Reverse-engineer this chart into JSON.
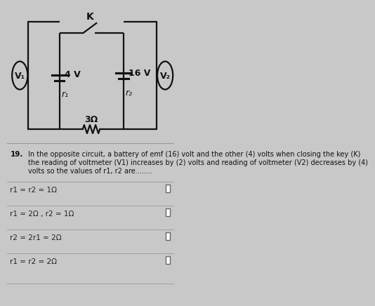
{
  "bg_color": "#c8c8c8",
  "circuit_area_bg": "#d0d0d0",
  "question_area_bg": "#c8c8c8",
  "title_number": "19.",
  "question_line1": "In the opposite circuit, a battery of emf (16) volt and the other (4) volts when closing the key (K)",
  "question_line2": "the reading of voltmeter (V1) increases by (2) volts and reading of voltmeter (V2) decreases by (4)",
  "question_line3": "volts so the values of r1, r2 are........",
  "options": [
    "r1 = r2 = 1Ω",
    "r1 = 2Ω , r2 = 1Ω",
    "r2 = 2r1 = 2Ω",
    "r1 = r2 = 2Ω"
  ],
  "circuit_label_K": "K",
  "circuit_label_4V": "4 V",
  "circuit_label_16V": "16 V",
  "circuit_label_r1": "r₁",
  "circuit_label_r2": "r₂",
  "circuit_label_3ohm": "3Ω",
  "circuit_label_V1": "V₁",
  "circuit_label_V2": "V₂",
  "line_color": "#111111",
  "text_color": "#111111",
  "option_text_color": "#222222",
  "separator_color": "#999999"
}
